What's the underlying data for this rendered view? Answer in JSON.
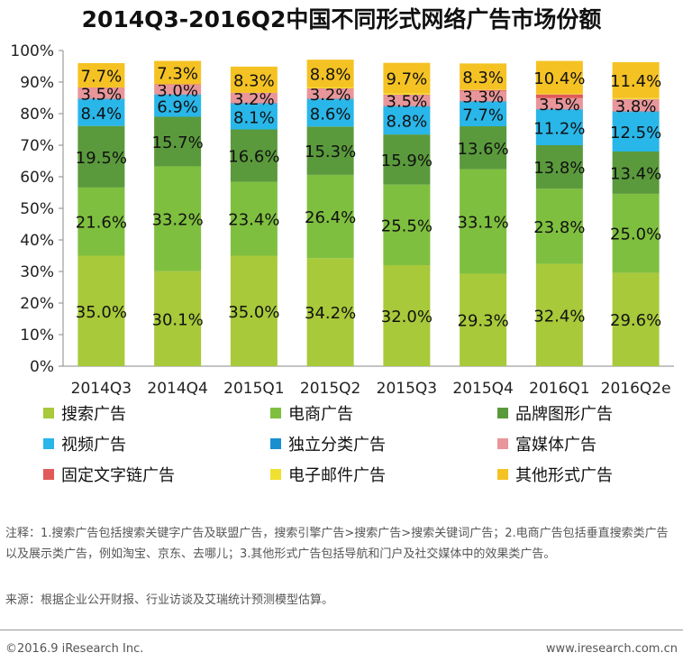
{
  "title": "2014Q3-2016Q2中国不同形式网络广告市场份额",
  "chart_data": {
    "type": "bar",
    "stacked": true,
    "categories": [
      "2014Q3",
      "2014Q4",
      "2015Q1",
      "2015Q2",
      "2015Q3",
      "2015Q4",
      "2016Q1",
      "2016Q2e"
    ],
    "ylim": [
      0,
      100
    ],
    "yticks": [
      "0%",
      "10%",
      "20%",
      "30%",
      "40%",
      "50%",
      "60%",
      "70%",
      "80%",
      "90%",
      "100%"
    ],
    "grid": false,
    "legend_position": "bottom",
    "series": [
      {
        "name": "搜索广告",
        "color": "#a8c93a",
        "values": [
          35.0,
          30.1,
          35.0,
          34.2,
          32.0,
          29.3,
          32.4,
          29.6
        ],
        "labels": [
          "35.0%",
          "30.1%",
          "35.0%",
          "34.2%",
          "32.0%",
          "29.3%",
          "32.4%",
          "29.6%"
        ]
      },
      {
        "name": "电商广告",
        "color": "#7fbf3f",
        "values": [
          21.6,
          33.2,
          23.4,
          26.4,
          25.5,
          33.1,
          23.8,
          25.0
        ],
        "labels": [
          "21.6%",
          "33.2%",
          "23.4%",
          "26.4%",
          "25.5%",
          "33.1%",
          "23.8%",
          "25.0%"
        ]
      },
      {
        "name": "品牌图形广告",
        "color": "#5a9a3c",
        "values": [
          19.5,
          15.7,
          16.6,
          15.3,
          15.9,
          13.6,
          13.8,
          13.4
        ],
        "labels": [
          "19.5%",
          "15.7%",
          "16.6%",
          "15.3%",
          "15.9%",
          "13.6%",
          "13.8%",
          "13.4%"
        ]
      },
      {
        "name": "视频广告",
        "color": "#29b6e8",
        "values": [
          8.4,
          6.9,
          8.1,
          8.6,
          8.8,
          7.7,
          11.2,
          12.5
        ],
        "labels": [
          "8.4%",
          "6.9%",
          "8.1%",
          "8.6%",
          "8.8%",
          "7.7%",
          "11.2%",
          "12.5%"
        ]
      },
      {
        "name": "独立分类广告",
        "color": "#1a8fd0",
        "values": [
          0.2,
          0.2,
          0.2,
          0.2,
          0.2,
          0.2,
          0.2,
          0.2
        ],
        "labels": [
          "",
          "",
          "",
          "",
          "",
          "",
          "",
          ""
        ]
      },
      {
        "name": "富媒体广告",
        "color": "#e8969a",
        "values": [
          3.5,
          3.0,
          3.2,
          3.2,
          3.5,
          3.3,
          3.5,
          3.8
        ],
        "labels": [
          "3.5%",
          "3.0%",
          "3.2%",
          "3.2%",
          "3.5%",
          "3.3%",
          "3.5%",
          "3.8%"
        ]
      },
      {
        "name": "固定文字链广告",
        "color": "#e05a5a",
        "values": [
          0.1,
          0.2,
          0.1,
          0.1,
          0.1,
          0.3,
          1.2,
          0.1
        ],
        "labels": [
          "",
          "",
          "",
          "",
          "",
          "",
          "",
          ""
        ]
      },
      {
        "name": "电子邮件广告",
        "color": "#f0e030",
        "values": [
          0.0,
          0.1,
          0.0,
          0.3,
          0.4,
          0.1,
          0.2,
          0.3
        ],
        "labels": [
          "",
          "",
          "",
          "",
          "",
          "",
          "",
          ""
        ]
      },
      {
        "name": "其他形式广告",
        "color": "#f5c224",
        "values": [
          7.7,
          7.3,
          8.3,
          8.8,
          9.7,
          8.3,
          10.4,
          11.4
        ],
        "labels": [
          "7.7%",
          "7.3%",
          "8.3%",
          "8.8%",
          "9.7%",
          "8.3%",
          "10.4%",
          "11.4%"
        ]
      }
    ]
  },
  "note": "注释：1.搜索广告包括搜索关键字广告及联盟广告，搜索引擎广告>搜索广告>搜索关键词广告；2.电商广告包括垂直搜索类广告以及展示类广告，例如淘宝、京东、去哪儿；3.其他形式广告包括导航和门户及社交媒体中的效果类广告。",
  "source": "来源：根据企业公开财报、行业访谈及艾瑞统计预测模型估算。",
  "footer": {
    "copyright": "©2016.9 iResearch Inc.",
    "website": "www.iresearch.com.cn"
  }
}
